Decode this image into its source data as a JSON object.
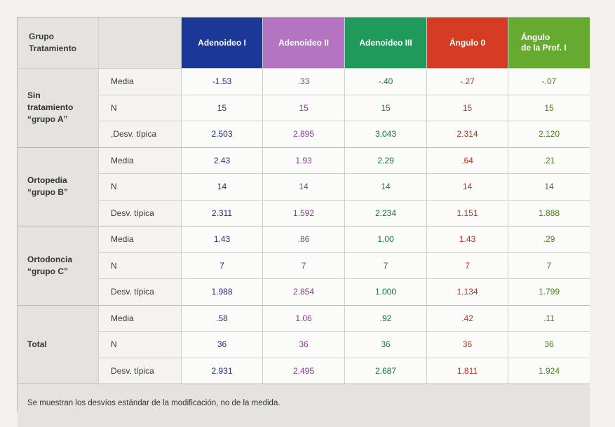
{
  "colors": {
    "adenoideo_i": "#1b3797",
    "adenoideo_ii": "#b574c2",
    "adenoideo_iii": "#1f9a5b",
    "angulo_0": "#d63b24",
    "angulo_prof_i": "#66ab2f"
  },
  "header": {
    "group_label_line1": "Grupo",
    "group_label_line2": "Tratamiento",
    "columns": [
      {
        "line1": "Adenoideo I",
        "line2": ""
      },
      {
        "line1": "Adenoideo II",
        "line2": ""
      },
      {
        "line1": "Adenoideo III",
        "line2": ""
      },
      {
        "line1": "Ángulo 0",
        "line2": ""
      },
      {
        "line1": "Ángulo",
        "line2": "de la Prof. I"
      }
    ]
  },
  "groups": [
    {
      "label_lines": [
        "Sin",
        "tratamiento",
        "“grupo A”"
      ],
      "rows": [
        {
          "stat": "Media",
          "values": [
            "-1.53",
            ".33",
            "-.40",
            "-.27",
            "-.07"
          ]
        },
        {
          "stat": "N",
          "values": [
            "15",
            "15",
            "15",
            "15",
            "15"
          ]
        },
        {
          "stat": ",Desv. típica",
          "values": [
            "2.503",
            "2.895",
            "3.043",
            "2.314",
            "2.120"
          ]
        }
      ]
    },
    {
      "label_lines": [
        "Ortopedia",
        "“grupo B”"
      ],
      "rows": [
        {
          "stat": "Media",
          "values": [
            "2.43",
            "1.93",
            "2.29",
            ".64",
            ".21"
          ]
        },
        {
          "stat": "N",
          "values": [
            "14",
            "14",
            "14",
            "14",
            "14"
          ]
        },
        {
          "stat": "Desv. típica",
          "values": [
            "2.311",
            "1.592",
            "2.234",
            "1.151",
            "1.888"
          ]
        }
      ]
    },
    {
      "label_lines": [
        "Ortodoncia",
        "“grupo C”"
      ],
      "rows": [
        {
          "stat": "Media",
          "values": [
            "1.43",
            ".86",
            "1.00",
            "1.43",
            ".29"
          ]
        },
        {
          "stat": "N",
          "values": [
            "7",
            "7",
            "7",
            "7",
            "7"
          ]
        },
        {
          "stat": "Desv. típica",
          "values": [
            "1.988",
            "2.854",
            "1.000",
            "1.134",
            "1.799"
          ]
        }
      ]
    },
    {
      "label_lines": [
        "Total"
      ],
      "rows": [
        {
          "stat": "Media",
          "values": [
            ".58",
            "1.06",
            ".92",
            ".42",
            ".11"
          ]
        },
        {
          "stat": "N",
          "values": [
            "36",
            "36",
            "36",
            "36",
            "36"
          ]
        },
        {
          "stat": "Desv. típica",
          "values": [
            "2.931",
            "2.495",
            "2.687",
            "1.811",
            "1.924"
          ]
        }
      ]
    }
  ],
  "footnote": "Se muestran los desvíos estándar de la modificación, no de la medida."
}
